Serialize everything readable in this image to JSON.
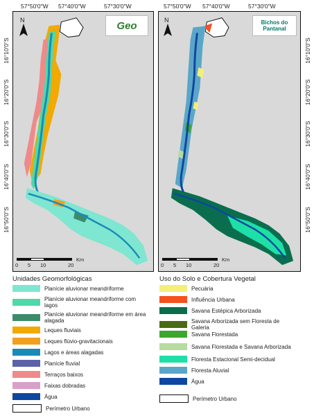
{
  "top_coords": [
    "57°50'0\"W",
    "57°40'0\"W",
    "57°30'0\"W"
  ],
  "left_coords": [
    "16°10'0\"S",
    "16°20'0\"S",
    "16°30'0\"S",
    "16°40'0\"S",
    "16°50'0\"S"
  ],
  "north_label": "N",
  "scale": {
    "ticks": [
      "0",
      "5",
      "10",
      "20"
    ],
    "unit": "Km"
  },
  "logos": {
    "left": "Geo",
    "right_line1": "Bichos do",
    "right_line2": "Pantanal"
  },
  "colors": {
    "background": "#d9d9d9",
    "water": "#0d47a1",
    "urban_edge": "#111111"
  },
  "left_legend": {
    "title": "Unidades Geomorfológicas",
    "items": [
      {
        "label": "Planície aluvionar meandriforme",
        "color": "#7fe6d1"
      },
      {
        "label": "Planície aluvionar meandriforme com lagos",
        "color": "#4fd9a8"
      },
      {
        "label": "Planície aluvionar meandriforme em área alagada",
        "color": "#3c8c6c"
      },
      {
        "label": "Leques fluviais",
        "color": "#f2a900"
      },
      {
        "label": "Leques flúvio-gravitacionais",
        "color": "#f2a01f"
      },
      {
        "label": "Lagos e áreas alagadas",
        "color": "#1a8bb8"
      },
      {
        "label": "Planície fluvial",
        "color": "#5a62a8"
      },
      {
        "label": "Terraços baixos",
        "color": "#f08a8a"
      },
      {
        "label": "Faixas dobradas",
        "color": "#d9a0c8"
      },
      {
        "label": "Água",
        "color": "#0d47a1"
      },
      {
        "label": "Perímetro Urbano",
        "color": "#ffffff"
      }
    ]
  },
  "right_legend": {
    "title": "Uso do Solo e Cobertura Vegetal",
    "items": [
      {
        "label": "Pecuária",
        "color": "#f4ef7a"
      },
      {
        "label": "Influência Urbana",
        "color": "#f4511e"
      },
      {
        "label": "Savana Estépica Arborizada",
        "color": "#0a6e4e"
      },
      {
        "label": "Savana Arborizada sem Floresta de Galeria",
        "color": "#4a6b12"
      },
      {
        "label": "Savana Florestada",
        "color": "#3da62e"
      },
      {
        "label": "Savana Florestada e Savana Arborizada",
        "color": "#b7dba0"
      },
      {
        "label": "Floresta Estacional Semi-decidual",
        "color": "#1ee0a6"
      },
      {
        "label": "Floresta Aluvial",
        "color": "#5aa6c8"
      },
      {
        "label": "Água",
        "color": "#0d47a1"
      },
      {
        "label": "Perímetro Urbano",
        "color": "#ffffff"
      }
    ]
  }
}
